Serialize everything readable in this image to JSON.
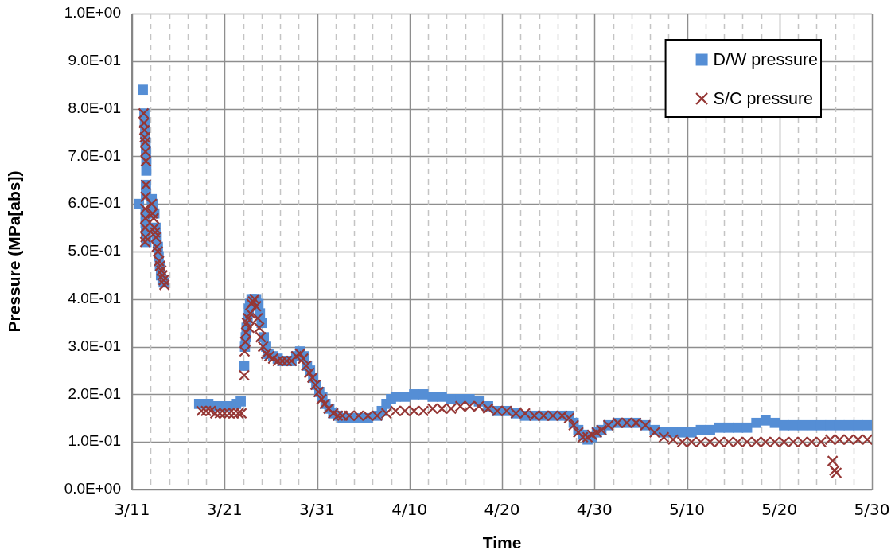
{
  "chart_data": {
    "type": "scatter",
    "xlabel": "Time",
    "ylabel": "Pressure (MPa[abs])",
    "grid": true,
    "legend": "top right",
    "xlim": [
      "--03-11",
      "--05-30"
    ],
    "ylim": [
      0,
      1
    ],
    "xticks": [
      {
        "value": "--03-11",
        "label": "3/11"
      },
      {
        "value": "--03-13",
        "label": null
      },
      {
        "value": "--03-15",
        "label": null
      },
      {
        "value": "--03-17",
        "label": null
      },
      {
        "value": "--03-19",
        "label": null
      },
      {
        "value": "--03-21",
        "label": "3/21"
      },
      {
        "value": "--03-23",
        "label": null
      },
      {
        "value": "--03-25",
        "label": null
      },
      {
        "value": "--03-27",
        "label": null
      },
      {
        "value": "--03-29",
        "label": null
      },
      {
        "value": "--03-31",
        "label": "3/31"
      },
      {
        "value": "--04-02",
        "label": null
      },
      {
        "value": "--04-04",
        "label": null
      },
      {
        "value": "--04-06",
        "label": null
      },
      {
        "value": "--04-08",
        "label": null
      },
      {
        "value": "--04-10",
        "label": "4/10"
      },
      {
        "value": "--04-12",
        "label": null
      },
      {
        "value": "--04-14",
        "label": null
      },
      {
        "value": "--04-16",
        "label": null
      },
      {
        "value": "--04-18",
        "label": null
      },
      {
        "value": "--04-20",
        "label": "4/20"
      },
      {
        "value": "--04-22",
        "label": null
      },
      {
        "value": "--04-24",
        "label": null
      },
      {
        "value": "--04-26",
        "label": null
      },
      {
        "value": "--04-28",
        "label": null
      },
      {
        "value": "--04-30",
        "label": "4/30"
      },
      {
        "value": "--05-02",
        "label": null
      },
      {
        "value": "--05-04",
        "label": null
      },
      {
        "value": "--05-06",
        "label": null
      },
      {
        "value": "--05-08",
        "label": null
      },
      {
        "value": "--05-10",
        "label": "5/10"
      },
      {
        "value": "--05-12",
        "label": null
      },
      {
        "value": "--05-14",
        "label": null
      },
      {
        "value": "--05-16",
        "label": null
      },
      {
        "value": "--05-18",
        "label": null
      },
      {
        "value": "--05-20",
        "label": "5/20"
      },
      {
        "value": "--05-22",
        "label": null
      },
      {
        "value": "--05-24",
        "label": null
      },
      {
        "value": "--05-26",
        "label": null
      },
      {
        "value": "--05-28",
        "label": null
      },
      {
        "value": "--05-30",
        "label": "5/30"
      }
    ],
    "yticks": [
      {
        "value": 0,
        "label": "0.0E+00"
      },
      {
        "value": 0.1,
        "label": "1.0E-01"
      },
      {
        "value": 0.2,
        "label": "2.0E-01"
      },
      {
        "value": 0.3,
        "label": "3.0E-01"
      },
      {
        "value": 0.4,
        "label": "4.0E-01"
      },
      {
        "value": 0.5,
        "label": "5.0E-01"
      },
      {
        "value": 0.6,
        "label": "6.0E-01"
      },
      {
        "value": 0.7,
        "label": "7.0E-01"
      },
      {
        "value": 0.8,
        "label": "8.0E-01"
      },
      {
        "value": 0.9,
        "label": "9.0E-01"
      },
      {
        "value": 1,
        "label": "1.0E+00"
      }
    ],
    "series": [
      {
        "name": "D/W pressure",
        "color": "#558ed5",
        "marker": "square",
        "x": [
          "--03-11T18:00",
          "--03-12T04:00",
          "--03-12T08:00",
          "--03-12T09:00",
          "--03-12T10:00",
          "--03-12T11:00",
          "--03-12T12:00",
          "--03-12T13:00",
          "--03-12T13:00",
          "--03-12T12:00",
          "--03-12T12:00",
          "--03-12T11:00",
          "--03-12T11:00",
          "--03-12T12:00",
          "--03-12T13:00",
          "--03-13T03:00",
          "--03-13T07:00",
          "--03-13T10:00",
          "--03-13T13:00",
          "--03-13T16:00",
          "--03-13T19:00",
          "--03-13T21:00",
          "--03-14T00:00",
          "--03-14T03:00",
          "--03-14T07:00",
          "--03-14T10:00",
          "--03-18T06:00",
          "--03-19T06:00",
          "--03-20T06:00",
          "--03-21T06:00",
          "--03-22T06:00",
          "--03-22T18:00",
          "--03-23T03:00",
          "--03-23T05:00",
          "--03-23T07:00",
          "--03-23T09:00",
          "--03-23T12:00",
          "--03-23T15:00",
          "--03-23T18:00",
          "--03-23T22:00",
          "--03-24T04:00",
          "--03-24T10:00",
          "--03-24T16:00",
          "--03-24T20:00",
          "--03-25T00:00",
          "--03-25T06:00",
          "--03-25T12:00",
          "--03-25T18:00",
          "--03-26T06:00",
          "--03-26T18:00",
          "--03-27T06:00",
          "--03-27T18:00",
          "--03-28T06:00",
          "--03-28T18:00",
          "--03-29T04:00",
          "--03-29T14:00",
          "--03-29T22:00",
          "--03-30T06:00",
          "--03-30T14:00",
          "--03-30T22:00",
          "--03-31T06:00",
          "--03-31T14:00",
          "--03-31T22:00",
          "--04-01T08:00",
          "--04-01T18:00",
          "--04-02T06:00",
          "--04-02T18:00",
          "--04-03T12:00",
          "--04-04T12:00",
          "--04-05T12:00",
          "--04-06T12:00",
          "--04-07T00:00",
          "--04-07T12:00",
          "--04-08T00:00",
          "--04-08T12:00",
          "--04-09T12:00",
          "--04-10T12:00",
          "--04-11T12:00",
          "--04-12T12:00",
          "--04-13T12:00",
          "--04-14T12:00",
          "--04-15T12:00",
          "--04-16T12:00",
          "--04-17T12:00",
          "--04-18T12:00",
          "--04-19T12:00",
          "--04-20T12:00",
          "--04-21T12:00",
          "--04-22T12:00",
          "--04-23T12:00",
          "--04-24T12:00",
          "--04-25T12:00",
          "--04-26T12:00",
          "--04-27T06:00",
          "--04-27T18:00",
          "--04-28T06:00",
          "--04-28T18:00",
          "--04-29T06:00",
          "--04-29T18:00",
          "--04-30T06:00",
          "--04-30T18:00",
          "--05-01T12:00",
          "--05-02T12:00",
          "--05-03T12:00",
          "--05-04T12:00",
          "--05-05T12:00",
          "--05-06T12:00",
          "--05-07T12:00",
          "--05-08T12:00",
          "--05-09T12:00",
          "--05-10T12:00",
          "--05-11T12:00",
          "--05-12T12:00",
          "--05-13T12:00",
          "--05-14T12:00",
          "--05-15T12:00",
          "--05-16T12:00",
          "--05-17T12:00",
          "--05-18T12:00",
          "--05-19T12:00",
          "--05-20T12:00",
          "--05-21T12:00",
          "--05-22T12:00",
          "--05-23T12:00",
          "--05-24T12:00",
          "--05-25T12:00",
          "--05-26T12:00",
          "--05-27T12:00",
          "--05-28T12:00",
          "--05-29T12:00"
        ],
        "values": [
          0.6,
          0.84,
          0.79,
          0.77,
          0.75,
          0.73,
          0.71,
          0.69,
          0.67,
          0.64,
          0.62,
          0.58,
          0.56,
          0.54,
          0.52,
          0.61,
          0.6,
          0.58,
          0.55,
          0.53,
          0.51,
          0.49,
          0.47,
          0.45,
          0.44,
          0.435,
          0.18,
          0.18,
          0.175,
          0.175,
          0.18,
          0.185,
          0.26,
          0.3,
          0.32,
          0.34,
          0.36,
          0.38,
          0.39,
          0.4,
          0.4,
          0.4,
          0.39,
          0.37,
          0.35,
          0.32,
          0.3,
          0.285,
          0.28,
          0.275,
          0.27,
          0.27,
          0.27,
          0.28,
          0.29,
          0.28,
          0.26,
          0.25,
          0.235,
          0.22,
          0.205,
          0.195,
          0.18,
          0.17,
          0.16,
          0.155,
          0.15,
          0.15,
          0.15,
          0.15,
          0.155,
          0.165,
          0.18,
          0.19,
          0.195,
          0.195,
          0.2,
          0.2,
          0.195,
          0.195,
          0.19,
          0.19,
          0.19,
          0.185,
          0.175,
          0.165,
          0.165,
          0.16,
          0.155,
          0.155,
          0.155,
          0.155,
          0.155,
          0.155,
          0.14,
          0.125,
          0.115,
          0.105,
          0.11,
          0.12,
          0.125,
          0.135,
          0.14,
          0.14,
          0.14,
          0.135,
          0.125,
          0.12,
          0.12,
          0.12,
          0.12,
          0.125,
          0.125,
          0.13,
          0.13,
          0.13,
          0.13,
          0.14,
          0.145,
          0.14,
          0.135,
          0.135,
          0.135,
          0.135,
          0.135,
          0.135,
          0.135,
          0.135,
          0.135,
          0.135
        ]
      },
      {
        "name": "S/C pressure",
        "color": "#953735",
        "marker": "cross",
        "x": [
          "--03-12T06:00",
          "--03-12T07:00",
          "--03-12T08:00",
          "--03-12T09:00",
          "--03-12T10:00",
          "--03-12T11:00",
          "--03-12T12:00",
          "--03-12T12:00",
          "--03-12T11:00",
          "--03-12T10:00",
          "--03-12T11:00",
          "--03-12T10:00",
          "--03-12T11:00",
          "--03-12T10:00",
          "--03-13T03:00",
          "--03-13T05:00",
          "--03-13T08:00",
          "--03-13T10:00",
          "--03-13T12:00",
          "--03-13T14:00",
          "--03-13T16:00",
          "--03-13T19:00",
          "--03-13T22:00",
          "--03-14T01:00",
          "--03-14T04:00",
          "--03-14T07:00",
          "--03-14T10:00",
          "--03-14T12:00",
          "--03-18T12:00",
          "--03-19T00:00",
          "--03-19T12:00",
          "--03-20T00:00",
          "--03-20T12:00",
          "--03-21T00:00",
          "--03-21T12:00",
          "--03-22T00:00",
          "--03-22T12:00",
          "--03-22T20:00",
          "--03-23T03:00",
          "--03-23T04:00",
          "--03-23T06:00",
          "--03-23T08:00",
          "--03-23T10:00",
          "--03-23T13:00",
          "--03-23T16:00",
          "--03-23T19:00",
          "--03-23T22:00",
          "--03-24T02:00",
          "--03-24T06:00",
          "--03-24T10:00",
          "--03-24T14:00",
          "--03-24T18:00",
          "--03-24T22:00",
          "--03-25T04:00",
          "--03-25T12:00",
          "--03-25T20:00",
          "--03-26T06:00",
          "--03-26T18:00",
          "--03-27T06:00",
          "--03-27T18:00",
          "--03-28T06:00",
          "--03-28T18:00",
          "--03-29T04:00",
          "--03-29T12:00",
          "--03-29T20:00",
          "--03-30T04:00",
          "--03-30T12:00",
          "--03-30T20:00",
          "--03-31T04:00",
          "--03-31T12:00",
          "--03-31T20:00",
          "--04-01T06:00",
          "--04-01T18:00",
          "--04-02T06:00",
          "--04-02T18:00",
          "--04-03T12:00",
          "--04-04T12:00",
          "--04-05T12:00",
          "--04-06T12:00",
          "--04-07T12:00",
          "--04-08T12:00",
          "--04-09T12:00",
          "--04-10T12:00",
          "--04-11T12:00",
          "--04-12T12:00",
          "--04-13T12:00",
          "--04-14T12:00",
          "--04-15T12:00",
          "--04-16T12:00",
          "--04-17T12:00",
          "--04-18T12:00",
          "--04-19T12:00",
          "--04-20T12:00",
          "--04-21T12:00",
          "--04-22T12:00",
          "--04-23T12:00",
          "--04-24T12:00",
          "--04-25T12:00",
          "--04-26T12:00",
          "--04-27T06:00",
          "--04-27T18:00",
          "--04-28T06:00",
          "--04-28T18:00",
          "--04-29T06:00",
          "--04-29T18:00",
          "--04-30T06:00",
          "--04-30T18:00",
          "--05-01T12:00",
          "--05-02T12:00",
          "--05-03T12:00",
          "--05-04T12:00",
          "--05-05T12:00",
          "--05-06T12:00",
          "--05-07T12:00",
          "--05-08T12:00",
          "--05-09T12:00",
          "--05-10T12:00",
          "--05-11T12:00",
          "--05-12T12:00",
          "--05-13T12:00",
          "--05-14T12:00",
          "--05-15T12:00",
          "--05-16T12:00",
          "--05-17T12:00",
          "--05-18T12:00",
          "--05-19T12:00",
          "--05-20T12:00",
          "--05-21T12:00",
          "--05-22T12:00",
          "--05-23T12:00",
          "--05-24T12:00",
          "--05-25T12:00",
          "--05-25T18:00",
          "--05-25T23:00",
          "--05-26T04:00",
          "--05-26T12:00",
          "--05-27T12:00",
          "--05-28T12:00",
          "--05-29T12:00"
        ],
        "values": [
          0.79,
          0.77,
          0.755,
          0.74,
          0.73,
          0.71,
          0.69,
          0.64,
          0.615,
          0.59,
          0.57,
          0.55,
          0.53,
          0.52,
          0.6,
          0.58,
          0.57,
          0.55,
          0.54,
          0.53,
          0.51,
          0.5,
          0.48,
          0.47,
          0.46,
          0.45,
          0.44,
          0.43,
          0.165,
          0.165,
          0.165,
          0.16,
          0.16,
          0.16,
          0.16,
          0.16,
          0.16,
          0.16,
          0.24,
          0.29,
          0.31,
          0.33,
          0.35,
          0.36,
          0.34,
          0.37,
          0.39,
          0.395,
          0.4,
          0.385,
          0.36,
          0.34,
          0.32,
          0.3,
          0.285,
          0.28,
          0.275,
          0.27,
          0.27,
          0.27,
          0.27,
          0.28,
          0.285,
          0.275,
          0.26,
          0.245,
          0.235,
          0.22,
          0.205,
          0.19,
          0.18,
          0.17,
          0.16,
          0.155,
          0.155,
          0.155,
          0.155,
          0.155,
          0.155,
          0.16,
          0.165,
          0.165,
          0.165,
          0.165,
          0.17,
          0.17,
          0.17,
          0.175,
          0.175,
          0.175,
          0.17,
          0.165,
          0.165,
          0.16,
          0.16,
          0.155,
          0.155,
          0.155,
          0.155,
          0.15,
          0.135,
          0.12,
          0.11,
          0.11,
          0.115,
          0.12,
          0.125,
          0.135,
          0.14,
          0.14,
          0.14,
          0.135,
          0.12,
          0.11,
          0.105,
          0.1,
          0.1,
          0.1,
          0.1,
          0.1,
          0.1,
          0.1,
          0.1,
          0.1,
          0.1,
          0.1,
          0.1,
          0.1,
          0.1,
          0.1,
          0.1,
          0.105,
          0.06,
          0.04,
          0.035,
          0.105,
          0.105,
          0.105,
          0.105
        ]
      }
    ]
  }
}
